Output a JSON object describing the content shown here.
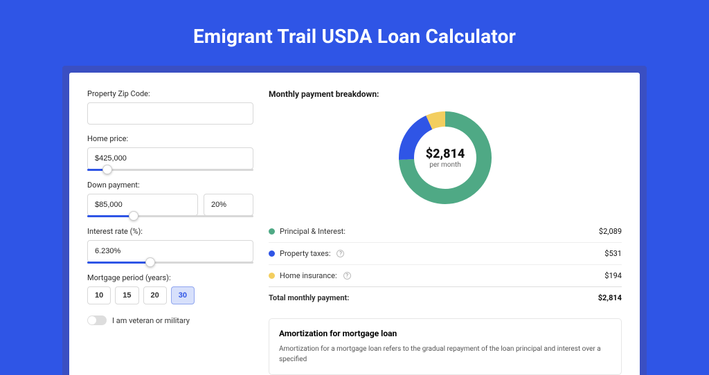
{
  "title": "Emigrant Trail USDA Loan Calculator",
  "form": {
    "zip": {
      "label": "Property Zip Code:",
      "value": ""
    },
    "home_price": {
      "label": "Home price:",
      "value": "$425,000",
      "slider_pct": 12
    },
    "down_payment": {
      "label": "Down payment:",
      "value": "$85,000",
      "pct": "20%",
      "slider_pct": 28
    },
    "interest": {
      "label": "Interest rate (%):",
      "value": "6.230%",
      "slider_pct": 38
    },
    "period": {
      "label": "Mortgage period (years):",
      "options": [
        "10",
        "15",
        "20",
        "30"
      ],
      "active": "30"
    },
    "veteran": {
      "label": "I am veteran or military",
      "checked": false
    }
  },
  "breakdown": {
    "title": "Monthly payment breakdown:",
    "center_value": "$2,814",
    "center_sub": "per month",
    "donut": {
      "stroke_width": 22,
      "radius": 56,
      "segments": [
        {
          "key": "pi",
          "color": "#4fa985",
          "frac": 0.742
        },
        {
          "key": "tax",
          "color": "#2f55e6",
          "frac": 0.189
        },
        {
          "key": "ins",
          "color": "#f3ce5f",
          "frac": 0.069
        }
      ]
    },
    "rows": [
      {
        "dot": "#4fa985",
        "label": "Principal & Interest:",
        "info": false,
        "value": "$2,089"
      },
      {
        "dot": "#2f55e6",
        "label": "Property taxes:",
        "info": true,
        "value": "$531"
      },
      {
        "dot": "#f3ce5f",
        "label": "Home insurance:",
        "info": true,
        "value": "$194"
      }
    ],
    "total": {
      "label": "Total monthly payment:",
      "value": "$2,814"
    }
  },
  "amortization": {
    "title": "Amortization for mortgage loan",
    "text": "Amortization for a mortgage loan refers to the gradual repayment of the loan principal and interest over a specified"
  }
}
